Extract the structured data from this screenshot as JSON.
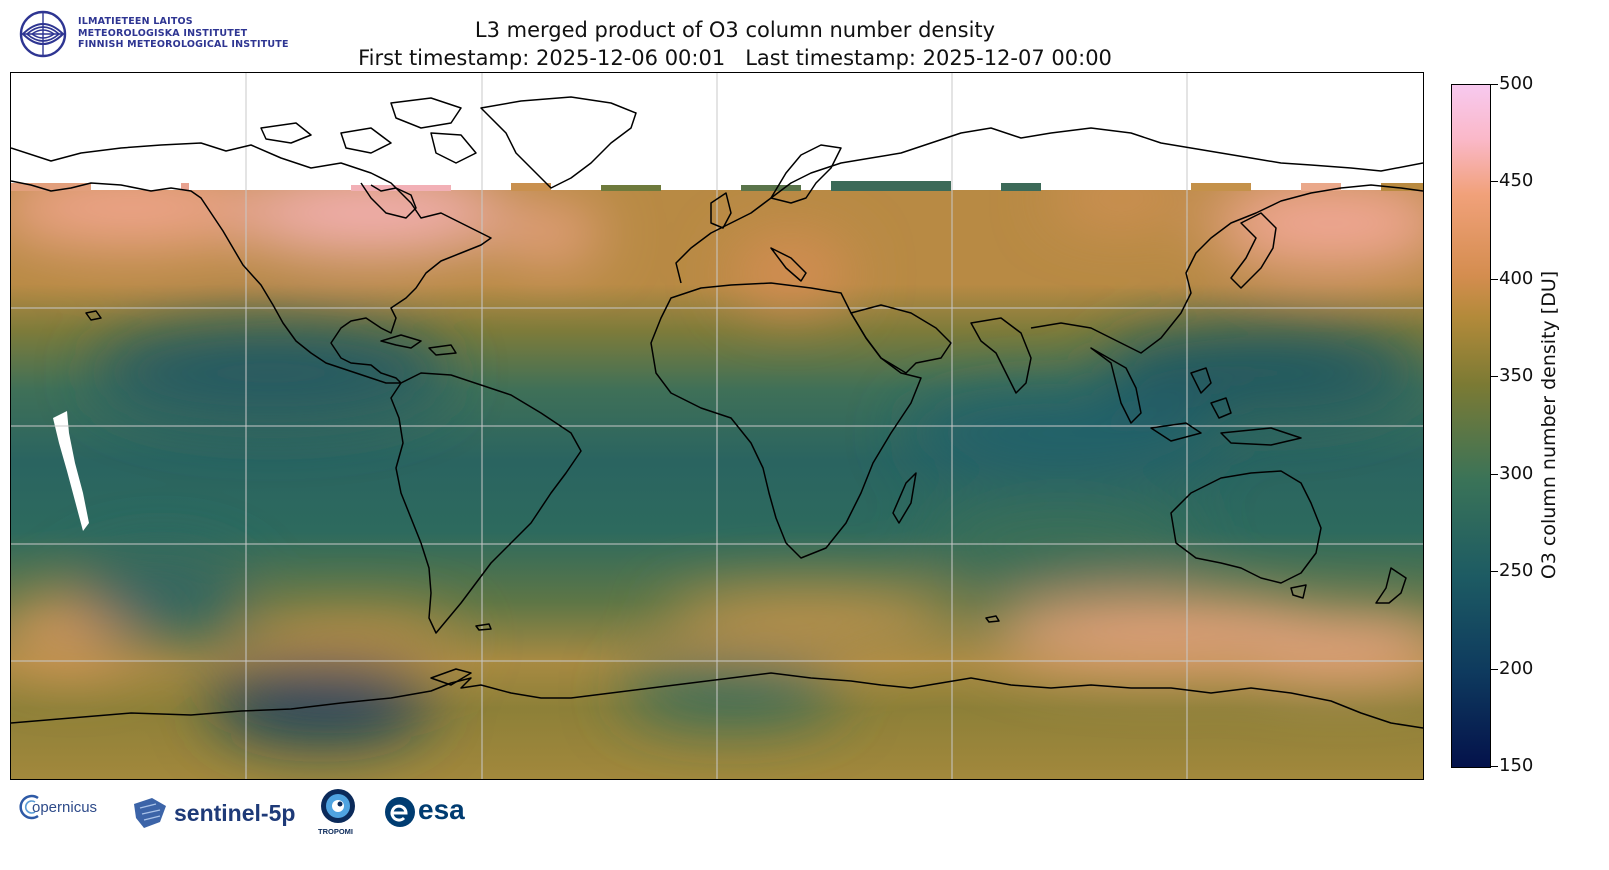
{
  "header": {
    "institute_lines": [
      "ILMATIETEEN LAITOS",
      "METEOROLOGISKA INSTITUTET",
      "FINNISH METEOROLOGICAL INSTITUTE"
    ],
    "title_line1": "L3 merged product of O3 column number density",
    "title_line2": "First timestamp: 2025-12-06 00:01   Last timestamp: 2025-12-07 00:00"
  },
  "map": {
    "variable": "O3 column number density",
    "units": "DU",
    "colormap_range": [
      150,
      500
    ],
    "gridlines": true,
    "projection": "PlateCarree",
    "colors": {
      "low": "#04124b",
      "mid_low": "#1d5b63",
      "mid": "#7b7a34",
      "mid_high": "#d48d4f",
      "high": "#f8c9ef",
      "no_data": "#ffffff",
      "coastline": "#000000",
      "grid": "#bdbdbd"
    }
  },
  "colorbar": {
    "label": "O3 column number density [DU]",
    "ticks": [
      "500",
      "450",
      "400",
      "350",
      "300",
      "250",
      "200",
      "150"
    ]
  },
  "footer": {
    "logos": [
      {
        "name": "copernicus",
        "text": "opernicus"
      },
      {
        "name": "sentinel-5p",
        "text": "sentinel-5p"
      },
      {
        "name": "tropomi",
        "text": "TROPOMI"
      },
      {
        "name": "esa",
        "text": "esa"
      }
    ]
  }
}
